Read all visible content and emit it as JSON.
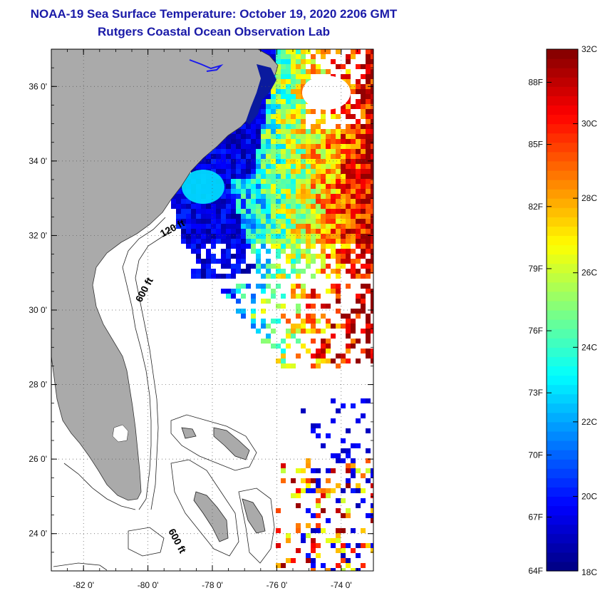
{
  "header": {
    "title": "NOAA-19 Sea Surface Temperature:  October 19, 2020 2206 GMT",
    "subtitle": "Rutgers Coastal Ocean Observation Lab"
  },
  "map": {
    "lon_range": [
      -83,
      -73
    ],
    "lat_range": [
      23,
      37
    ],
    "lon_ticks": [
      -82,
      -80,
      -78,
      -76,
      -74
    ],
    "lon_tick_labels": [
      "-82 0'",
      "-80 0'",
      "-78 0'",
      "-76 0'",
      "-74 0'"
    ],
    "lat_ticks": [
      24,
      26,
      28,
      30,
      32,
      34,
      36
    ],
    "lat_tick_labels": [
      "24 0'",
      "26 0'",
      "28 0'",
      "30 0'",
      "32 0'",
      "34 0'",
      "36 0'"
    ],
    "contour_labels": [
      "120 ft",
      "600 ft",
      "600 ft"
    ],
    "land_color": "#aaaaaa",
    "no_data_color": "#ffffff",
    "grid": "dotted"
  },
  "colorbar": {
    "celsius_labels": [
      "32C",
      "30C",
      "28C",
      "26C",
      "24C",
      "22C",
      "20C",
      "18C"
    ],
    "fahrenheit_labels": [
      "88F",
      "85F",
      "82F",
      "79F",
      "76F",
      "73F",
      "70F",
      "67F",
      "64F"
    ],
    "fahrenheit_values": [
      88,
      85,
      82,
      79,
      76,
      73,
      70,
      67,
      64
    ],
    "min_c": 18,
    "max_c": 32
  }
}
